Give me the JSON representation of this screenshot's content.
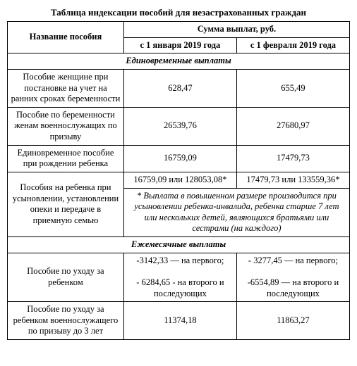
{
  "title": "Таблица индексации пособий для незастрахованных граждан",
  "headers": {
    "name": "Название пособия",
    "sum": "Сумма выплат, руб.",
    "from_jan": "с 1 января 2019 года",
    "from_feb": "с 1 февраля 2019 года"
  },
  "sections": {
    "onetime": "Единовременные выплаты",
    "monthly": "Ежемесячные выплаты"
  },
  "rows": {
    "r1": {
      "name": "Пособие женщине при постановке на учет на ранних сроках беременности",
      "jan": "628,47",
      "feb": "655,49"
    },
    "r2": {
      "name": "Пособие по беременности женам военнослужащих по призыву",
      "jan": "26539,76",
      "feb": "27680,97"
    },
    "r3": {
      "name": "Единовременное пособие при рождении ребенка",
      "jan": "16759,09",
      "feb": "17479,73"
    },
    "r4": {
      "name": "Пособия на ребенка при усыновлении, установлении опеки и передаче в приемную семью",
      "jan": "16759,09 или 128053,08*",
      "feb": "17479,73 или 133559,36*"
    },
    "r4_note": "* Выплата в повышенном размере производится при усыновлении ребенка-инвалида, ребенка старше 7 лет или нескольких детей, являющихся братьями или сестрами (на каждого)",
    "r5": {
      "name": "Пособие по уходу за ребенком",
      "jan_l1": "-3142,33 — на первого;",
      "jan_l2": "- 6284,65 - на второго и последующих",
      "feb_l1": "- 3277,45 — на первого;",
      "feb_l2": "-6554,89 — на второго и последующих"
    },
    "r6": {
      "name": "Пособие по уходу за ребенком военнослужащего по призыву до 3 лет",
      "jan": "11374,18",
      "feb": "11863,27"
    }
  },
  "colors": {
    "background": "#ffffff",
    "text": "#000000",
    "border": "#000000"
  },
  "typography": {
    "font_family": "Times New Roman",
    "base_font_size_pt": 10,
    "title_font_size_pt": 10
  }
}
